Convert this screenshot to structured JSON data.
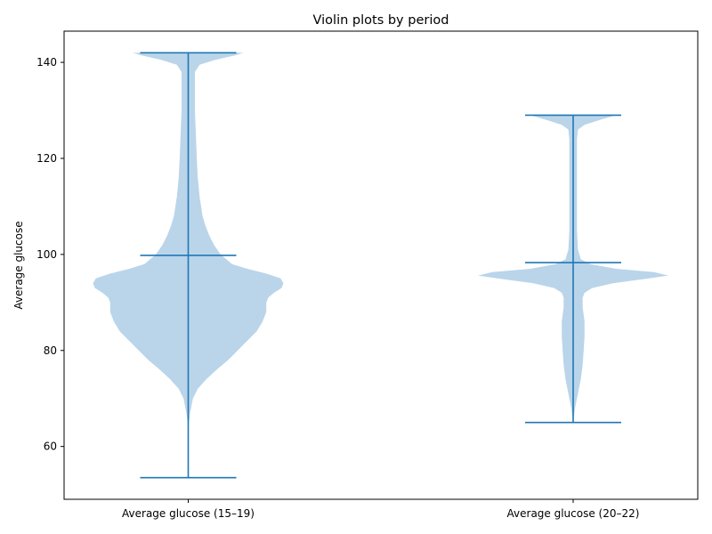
{
  "chart_data": {
    "type": "violin",
    "title": "Violin plots by period",
    "xlabel": "",
    "ylabel": "Average glucose",
    "ylim": [
      49,
      146.5
    ],
    "yticks": [
      60,
      80,
      100,
      120,
      140
    ],
    "grid": false,
    "colors": {
      "body": "#bad5ea",
      "line": "#1f77b4",
      "axis": "#000000"
    },
    "categories": [
      "Average glucose (15–19)",
      "Average glucose (20–22)"
    ],
    "series": [
      {
        "min": 53.5,
        "max": 142,
        "median": 99.8,
        "profile": [
          [
            53.5,
            0.0
          ],
          [
            60,
            0.0
          ],
          [
            64,
            0.0
          ],
          [
            67,
            0.02
          ],
          [
            70,
            0.05
          ],
          [
            72,
            0.1
          ],
          [
            74,
            0.19
          ],
          [
            76,
            0.3
          ],
          [
            78,
            0.42
          ],
          [
            80,
            0.52
          ],
          [
            82,
            0.62
          ],
          [
            84,
            0.72
          ],
          [
            86,
            0.78
          ],
          [
            88,
            0.82
          ],
          [
            90,
            0.82
          ],
          [
            91,
            0.84
          ],
          [
            92,
            0.9
          ],
          [
            93,
            0.98
          ],
          [
            94,
            1.0
          ],
          [
            95,
            0.97
          ],
          [
            96,
            0.82
          ],
          [
            97,
            0.62
          ],
          [
            98,
            0.46
          ],
          [
            100,
            0.34
          ],
          [
            102,
            0.27
          ],
          [
            104,
            0.22
          ],
          [
            106,
            0.18
          ],
          [
            108,
            0.15
          ],
          [
            112,
            0.12
          ],
          [
            116,
            0.1
          ],
          [
            120,
            0.09
          ],
          [
            125,
            0.08
          ],
          [
            130,
            0.07
          ],
          [
            135,
            0.07
          ],
          [
            138,
            0.07
          ],
          [
            139.5,
            0.12
          ],
          [
            140.5,
            0.28
          ],
          [
            141.5,
            0.5
          ],
          [
            142,
            0.58
          ]
        ]
      },
      {
        "min": 65,
        "max": 129,
        "median": 98.3,
        "profile": [
          [
            65,
            0.0
          ],
          [
            68,
            0.02
          ],
          [
            71,
            0.05
          ],
          [
            74,
            0.08
          ],
          [
            77,
            0.1
          ],
          [
            80,
            0.11
          ],
          [
            83,
            0.12
          ],
          [
            86,
            0.12
          ],
          [
            89,
            0.1
          ],
          [
            91,
            0.1
          ],
          [
            92,
            0.12
          ],
          [
            93,
            0.2
          ],
          [
            94,
            0.42
          ],
          [
            95,
            0.8
          ],
          [
            95.6,
            1.0
          ],
          [
            96.3,
            0.85
          ],
          [
            97,
            0.45
          ],
          [
            98,
            0.18
          ],
          [
            99,
            0.08
          ],
          [
            101,
            0.05
          ],
          [
            105,
            0.04
          ],
          [
            110,
            0.04
          ],
          [
            115,
            0.04
          ],
          [
            120,
            0.04
          ],
          [
            124,
            0.04
          ],
          [
            126,
            0.05
          ],
          [
            127,
            0.12
          ],
          [
            128,
            0.28
          ],
          [
            129,
            0.45
          ]
        ]
      }
    ]
  }
}
